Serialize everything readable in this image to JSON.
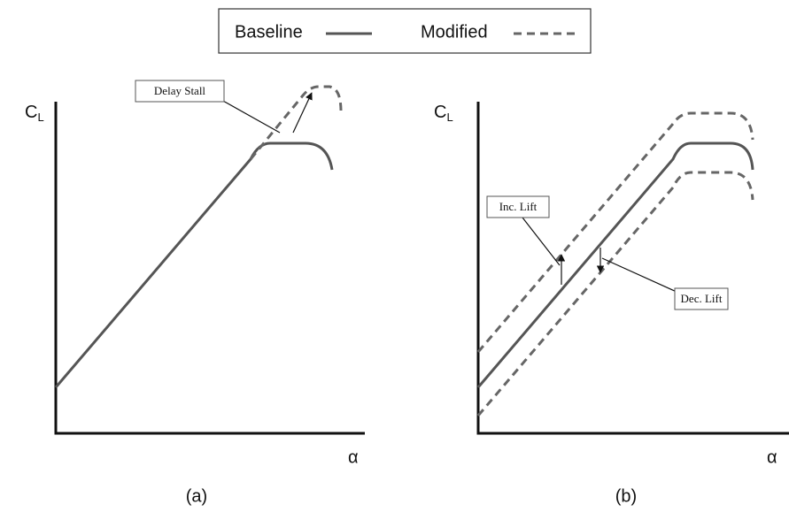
{
  "legend": {
    "items": [
      {
        "label": "Baseline"
      },
      {
        "label": "Modified"
      }
    ]
  },
  "panels": [
    {
      "label": "(a)",
      "y_label": "C",
      "y_label_sub": "L",
      "x_label": "α",
      "annotations": [
        "Delay Stall"
      ]
    },
    {
      "label": "(b)",
      "y_label": "C",
      "y_label_sub": "L",
      "x_label": "α",
      "annotations": [
        "Inc. Lift",
        "Dec. Lift"
      ]
    }
  ]
}
